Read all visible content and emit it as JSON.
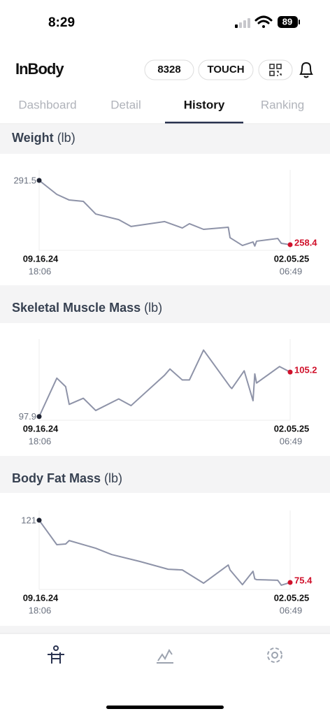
{
  "status": {
    "time": "8:29",
    "battery": "89"
  },
  "header": {
    "logo": "InBody",
    "buttons": [
      "8328",
      "TOUCH"
    ]
  },
  "tabs": [
    "Dashboard",
    "Detail",
    "History",
    "Ranking"
  ],
  "active_tab": 2,
  "charts": [
    {
      "type": "line",
      "title": "Weight",
      "unit": "(lb)",
      "color": "#8e93a8",
      "end_color": "#d0112b",
      "x": [
        0,
        10,
        17,
        25,
        32,
        45,
        52,
        71,
        81,
        85,
        93,
        107,
        108,
        115,
        121,
        122,
        123,
        135,
        137,
        142
      ],
      "values": [
        291.5,
        284.3,
        281.4,
        280.7,
        274.2,
        271.3,
        267.8,
        270.3,
        267.0,
        269.2,
        266.3,
        267.4,
        262.0,
        258.0,
        259.8,
        257.7,
        260.2,
        261.6,
        259.1,
        258.4
      ],
      "xlim": [
        0,
        142
      ],
      "ylim": [
        255.5,
        296.9
      ],
      "start_date": "09.16.24",
      "start_time": "18:06",
      "end_date": "02.05.25",
      "end_time": "06:49"
    },
    {
      "type": "line",
      "title": "Skeletal Muscle Mass",
      "unit": "(lb)",
      "color": "#8e93a8",
      "end_color": "#d0112b",
      "x": [
        0,
        10,
        15,
        17,
        25,
        32,
        45,
        52,
        71,
        74,
        81,
        85,
        93,
        108,
        109,
        116,
        121,
        122,
        123,
        136,
        142
      ],
      "values": [
        97.9,
        104.2,
        102.8,
        99.9,
        100.9,
        98.9,
        100.8,
        99.7,
        104.7,
        105.7,
        103.9,
        103.9,
        108.8,
        102.8,
        102.5,
        105.4,
        100.5,
        104.9,
        103.4,
        106.1,
        105.2
      ],
      "xlim": [
        0,
        142
      ],
      "ylim": [
        97.3,
        110.6
      ],
      "start_date": "09.16.24",
      "start_time": "18:06",
      "end_date": "02.05.25",
      "end_time": "06:49"
    },
    {
      "type": "line",
      "title": "Body Fat Mass",
      "unit": "(lb)",
      "color": "#8e93a8",
      "end_color": "#d0112b",
      "x": [
        0,
        10,
        15,
        17,
        32,
        41,
        57,
        73,
        81,
        93,
        107,
        108,
        115,
        121,
        122,
        123,
        135,
        137,
        142
      ],
      "values": [
        121.0,
        103.1,
        103.6,
        106.1,
        100.5,
        95.9,
        90.8,
        85.1,
        84.6,
        74.9,
        88.2,
        84.6,
        73.8,
        83.6,
        78.0,
        77.5,
        77.0,
        73.4,
        75.4
      ],
      "xlim": [
        0,
        142
      ],
      "ylim": [
        70.3,
        128.2
      ],
      "start_date": "09.16.24",
      "start_time": "18:06",
      "end_date": "02.05.25",
      "end_time": "06:49"
    }
  ]
}
